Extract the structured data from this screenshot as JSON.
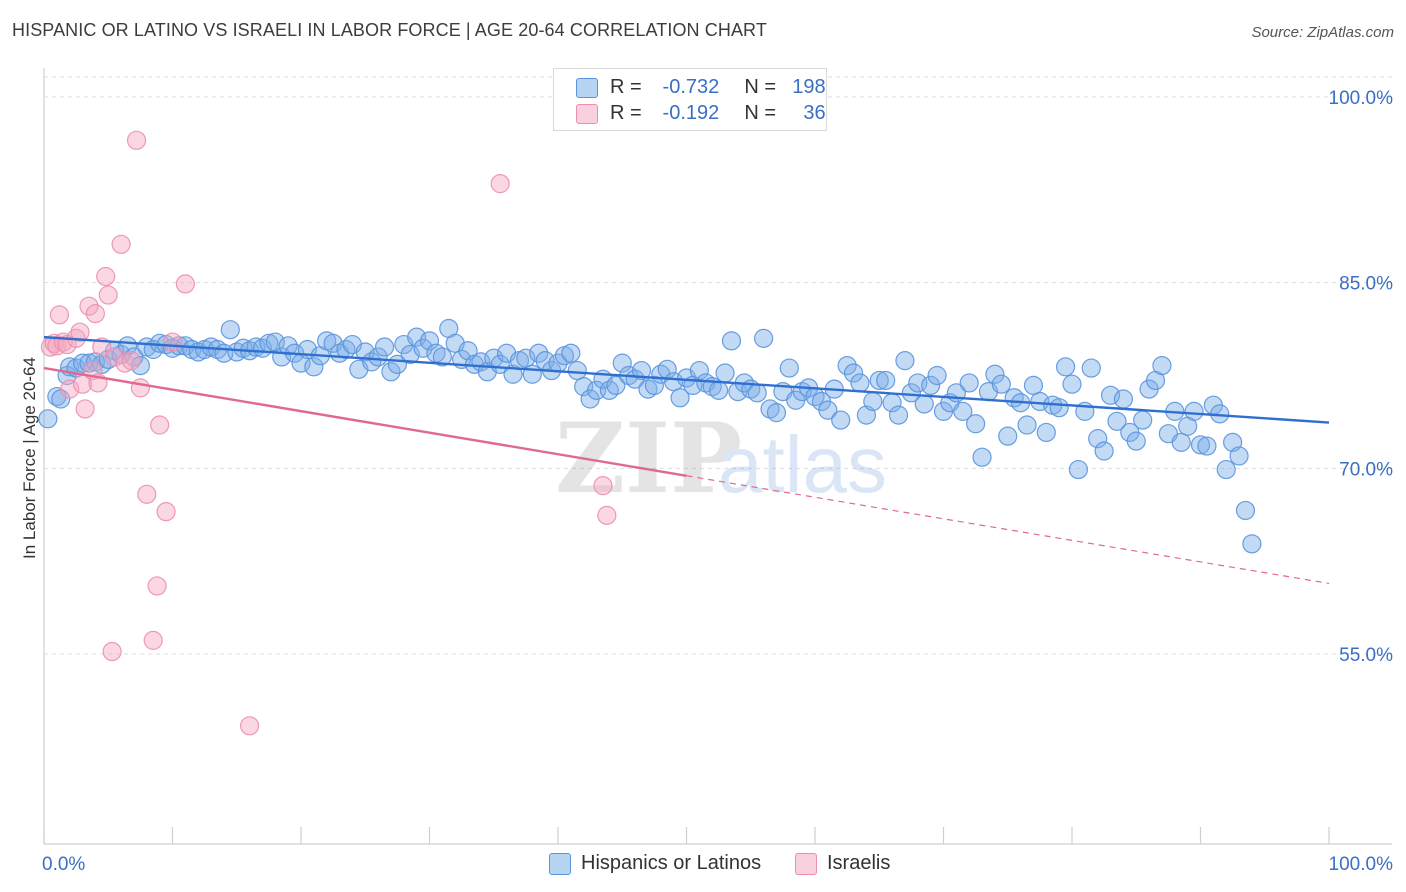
{
  "header": {
    "title": "HISPANIC OR LATINO VS ISRAELI IN LABOR FORCE | AGE 20-64 CORRELATION CHART",
    "source": "Source: ZipAtlas.com"
  },
  "watermark": {
    "text_zip": "ZIP",
    "text_atlas": "atlas"
  },
  "legend": {
    "r_label": "R =",
    "n_label": "N =",
    "rows": [
      {
        "r": "-0.732",
        "n": "198",
        "color": "#7aaee8"
      },
      {
        "r": "-0.192",
        "n": "36",
        "color": "#f4a6bf"
      }
    ]
  },
  "chart_data": {
    "type": "scatter",
    "title": "HISPANIC OR LATINO VS ISRAELI IN LABOR FORCE | AGE 20-64 CORRELATION CHART",
    "xlabel": "",
    "ylabel": "In Labor Force | Age 20-64",
    "xlim": [
      0,
      100
    ],
    "ylim": [
      40,
      102
    ],
    "x_tick_labels": [
      "0.0%",
      "100.0%"
    ],
    "y_ticks": [
      100,
      85,
      70,
      55
    ],
    "y_tick_labels": [
      "100.0%",
      "85.0%",
      "70.0%",
      "55.0%"
    ],
    "grid": true,
    "legend_position": "top-center",
    "series": [
      {
        "name": "Hispanics or Latinos",
        "color": "#7aaee8",
        "line_color": "#2f6fcf",
        "trend": {
          "x0": 0,
          "y0": 80.6,
          "x1": 100,
          "y1": 73.7,
          "solid_until": 100
        },
        "points": [
          [
            0.3,
            74
          ],
          [
            1.0,
            75.8
          ],
          [
            1.3,
            75.6
          ],
          [
            1.8,
            77.5
          ],
          [
            2.0,
            78.2
          ],
          [
            2.5,
            78.1
          ],
          [
            3.0,
            78.5
          ],
          [
            3.5,
            78.5
          ],
          [
            4.0,
            78.6
          ],
          [
            4.5,
            78.4
          ],
          [
            5.0,
            78.8
          ],
          [
            5.5,
            79.5
          ],
          [
            6.0,
            79.2
          ],
          [
            6.5,
            79.9
          ],
          [
            7.0,
            79.0
          ],
          [
            7.5,
            78.3
          ],
          [
            8.0,
            79.8
          ],
          [
            8.5,
            79.6
          ],
          [
            9.0,
            80.1
          ],
          [
            9.5,
            80.0
          ],
          [
            10.0,
            79.7
          ],
          [
            10.5,
            79.9
          ],
          [
            11.0,
            79.9
          ],
          [
            11.5,
            79.6
          ],
          [
            12.0,
            79.4
          ],
          [
            12.5,
            79.6
          ],
          [
            13.0,
            79.8
          ],
          [
            13.5,
            79.6
          ],
          [
            14.0,
            79.3
          ],
          [
            14.5,
            81.2
          ],
          [
            15.0,
            79.4
          ],
          [
            15.5,
            79.7
          ],
          [
            16.0,
            79.5
          ],
          [
            16.5,
            79.8
          ],
          [
            17.0,
            79.7
          ],
          [
            17.5,
            80.1
          ],
          [
            18.0,
            80.2
          ],
          [
            18.5,
            79.0
          ],
          [
            19.0,
            79.9
          ],
          [
            19.5,
            79.3
          ],
          [
            20.0,
            78.5
          ],
          [
            20.5,
            79.6
          ],
          [
            21.0,
            78.2
          ],
          [
            21.5,
            79.1
          ],
          [
            22.0,
            80.3
          ],
          [
            22.5,
            80.1
          ],
          [
            23.0,
            79.3
          ],
          [
            23.5,
            79.6
          ],
          [
            24.0,
            80.0
          ],
          [
            24.5,
            78.0
          ],
          [
            25.0,
            79.4
          ],
          [
            25.5,
            78.6
          ],
          [
            26.0,
            79.0
          ],
          [
            26.5,
            79.8
          ],
          [
            27.0,
            77.8
          ],
          [
            27.5,
            78.4
          ],
          [
            28.0,
            80.0
          ],
          [
            28.5,
            79.2
          ],
          [
            29.0,
            80.6
          ],
          [
            29.5,
            79.7
          ],
          [
            30.0,
            80.3
          ],
          [
            30.5,
            79.3
          ],
          [
            31.0,
            79.0
          ],
          [
            31.5,
            81.3
          ],
          [
            32.0,
            80.1
          ],
          [
            32.5,
            78.8
          ],
          [
            33.0,
            79.5
          ],
          [
            33.5,
            78.4
          ],
          [
            34.0,
            78.6
          ],
          [
            34.5,
            77.8
          ],
          [
            35.0,
            78.9
          ],
          [
            35.5,
            78.4
          ],
          [
            36.0,
            79.3
          ],
          [
            36.5,
            77.6
          ],
          [
            37.0,
            78.7
          ],
          [
            37.5,
            78.9
          ],
          [
            38.0,
            77.6
          ],
          [
            38.5,
            79.3
          ],
          [
            39.0,
            78.7
          ],
          [
            39.5,
            77.9
          ],
          [
            40.0,
            78.5
          ],
          [
            40.5,
            79.1
          ],
          [
            41.0,
            79.3
          ],
          [
            41.5,
            77.9
          ],
          [
            42.0,
            76.6
          ],
          [
            42.5,
            75.6
          ],
          [
            43.0,
            76.3
          ],
          [
            43.5,
            77.2
          ],
          [
            44.0,
            76.3
          ],
          [
            44.5,
            76.7
          ],
          [
            45.0,
            78.5
          ],
          [
            45.5,
            77.5
          ],
          [
            46.0,
            77.2
          ],
          [
            46.5,
            77.9
          ],
          [
            47.0,
            76.4
          ],
          [
            47.5,
            76.7
          ],
          [
            48.0,
            77.6
          ],
          [
            48.5,
            78.0
          ],
          [
            49.0,
            77.0
          ],
          [
            49.5,
            75.7
          ],
          [
            50.0,
            77.3
          ],
          [
            50.5,
            76.7
          ],
          [
            51.0,
            77.9
          ],
          [
            51.5,
            76.9
          ],
          [
            52.0,
            76.6
          ],
          [
            52.5,
            76.3
          ],
          [
            53.0,
            77.7
          ],
          [
            53.5,
            80.3
          ],
          [
            54.0,
            76.2
          ],
          [
            54.5,
            76.9
          ],
          [
            55.0,
            76.4
          ],
          [
            55.5,
            76.1
          ],
          [
            56.0,
            80.5
          ],
          [
            56.5,
            74.8
          ],
          [
            57.0,
            74.5
          ],
          [
            57.5,
            76.2
          ],
          [
            58.0,
            78.1
          ],
          [
            58.5,
            75.5
          ],
          [
            59.0,
            76.2
          ],
          [
            59.5,
            76.5
          ],
          [
            60.0,
            75.8
          ],
          [
            60.5,
            75.4
          ],
          [
            61.0,
            74.7
          ],
          [
            61.5,
            76.4
          ],
          [
            62.0,
            73.9
          ],
          [
            62.5,
            78.3
          ],
          [
            63.0,
            77.7
          ],
          [
            63.5,
            76.9
          ],
          [
            64.0,
            74.3
          ],
          [
            64.5,
            75.4
          ],
          [
            65.0,
            77.1
          ],
          [
            65.5,
            77.1
          ],
          [
            66.0,
            75.3
          ],
          [
            66.5,
            74.3
          ],
          [
            67.0,
            78.7
          ],
          [
            67.5,
            76.1
          ],
          [
            68.0,
            76.9
          ],
          [
            68.5,
            75.2
          ],
          [
            69.0,
            76.7
          ],
          [
            69.5,
            77.5
          ],
          [
            70.0,
            74.6
          ],
          [
            70.5,
            75.3
          ],
          [
            71.0,
            76.1
          ],
          [
            71.5,
            74.6
          ],
          [
            72.0,
            76.9
          ],
          [
            72.5,
            73.6
          ],
          [
            73.0,
            70.9
          ],
          [
            73.5,
            76.2
          ],
          [
            74.0,
            77.6
          ],
          [
            74.5,
            76.8
          ],
          [
            75.0,
            72.6
          ],
          [
            75.5,
            75.7
          ],
          [
            76.0,
            75.3
          ],
          [
            76.5,
            73.5
          ],
          [
            77.0,
            76.7
          ],
          [
            77.5,
            75.4
          ],
          [
            78.0,
            72.9
          ],
          [
            78.5,
            75.1
          ],
          [
            79.0,
            74.9
          ],
          [
            79.5,
            78.2
          ],
          [
            80.0,
            76.8
          ],
          [
            80.5,
            69.9
          ],
          [
            81.0,
            74.6
          ],
          [
            81.5,
            78.1
          ],
          [
            82.0,
            72.4
          ],
          [
            82.5,
            71.4
          ],
          [
            83.0,
            75.9
          ],
          [
            83.5,
            73.8
          ],
          [
            84.0,
            75.6
          ],
          [
            84.5,
            72.9
          ],
          [
            85.0,
            72.2
          ],
          [
            85.5,
            73.9
          ],
          [
            86.0,
            76.4
          ],
          [
            86.5,
            77.1
          ],
          [
            87.0,
            78.3
          ],
          [
            87.5,
            72.8
          ],
          [
            88.0,
            74.6
          ],
          [
            88.5,
            72.1
          ],
          [
            89.0,
            73.4
          ],
          [
            89.5,
            74.6
          ],
          [
            90.0,
            71.9
          ],
          [
            90.5,
            71.8
          ],
          [
            91.0,
            75.1
          ],
          [
            91.5,
            74.4
          ],
          [
            92.0,
            69.9
          ],
          [
            92.5,
            72.1
          ],
          [
            93.0,
            71.0
          ],
          [
            93.5,
            66.6
          ],
          [
            94.0,
            63.9
          ]
        ]
      },
      {
        "name": "Israelis",
        "color": "#f4a6bf",
        "line_color": "#e0698f",
        "trend": {
          "x0": 0,
          "y0": 78.1,
          "x1": 100,
          "y1": 60.7,
          "solid_until": 50
        },
        "points": [
          [
            0.5,
            79.8
          ],
          [
            0.8,
            80.1
          ],
          [
            1.0,
            79.9
          ],
          [
            1.2,
            82.4
          ],
          [
            1.5,
            80.2
          ],
          [
            1.8,
            80.0
          ],
          [
            2.0,
            76.4
          ],
          [
            2.5,
            80.5
          ],
          [
            2.8,
            81.0
          ],
          [
            3.0,
            76.8
          ],
          [
            3.2,
            74.8
          ],
          [
            3.5,
            83.1
          ],
          [
            3.8,
            77.9
          ],
          [
            4.0,
            82.5
          ],
          [
            4.2,
            76.9
          ],
          [
            4.5,
            79.8
          ],
          [
            4.8,
            85.5
          ],
          [
            5.0,
            84.0
          ],
          [
            5.3,
            55.2
          ],
          [
            5.5,
            79.0
          ],
          [
            6.0,
            88.1
          ],
          [
            6.3,
            78.5
          ],
          [
            6.8,
            78.7
          ],
          [
            7.2,
            96.5
          ],
          [
            7.5,
            76.5
          ],
          [
            8.0,
            67.9
          ],
          [
            8.5,
            56.1
          ],
          [
            8.8,
            60.5
          ],
          [
            9.0,
            73.5
          ],
          [
            9.5,
            66.5
          ],
          [
            10.0,
            80.2
          ],
          [
            11.0,
            84.9
          ],
          [
            16.0,
            49.2
          ],
          [
            35.5,
            93.0
          ],
          [
            43.5,
            68.6
          ],
          [
            43.8,
            66.2
          ]
        ]
      }
    ]
  }
}
